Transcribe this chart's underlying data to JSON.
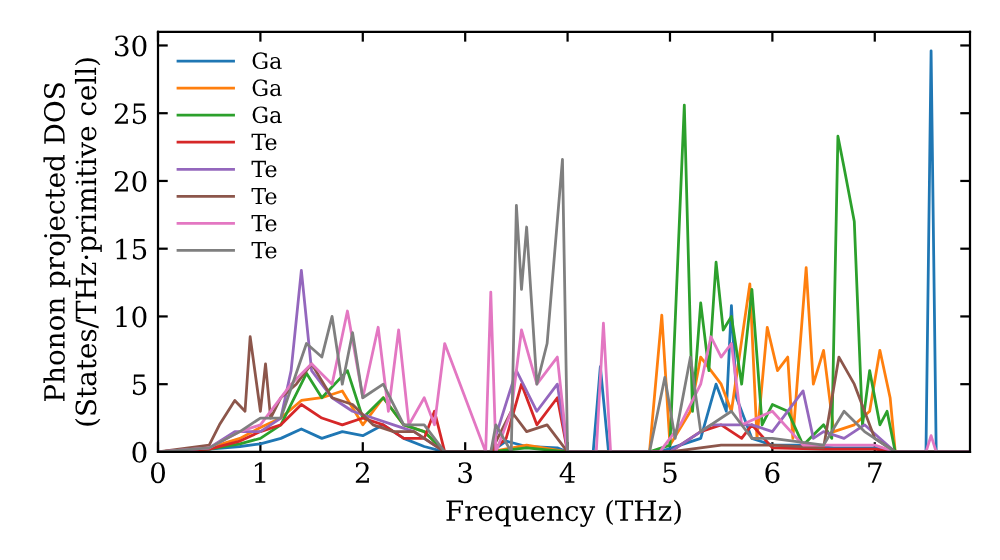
{
  "chart_data": {
    "type": "line",
    "xlabel": "Frequency (THz)",
    "ylabel": "Phonon projected DOS\n(States/THz·primitive cell)",
    "xlim": [
      0,
      7.93
    ],
    "ylim": [
      0,
      31
    ],
    "xticks": [
      0,
      1,
      2,
      3,
      4,
      5,
      6,
      7
    ],
    "yticks": [
      0,
      5,
      10,
      15,
      20,
      25,
      30
    ],
    "grid": false,
    "legend": "top left",
    "marker": "none",
    "line_style": "solid",
    "series": [
      {
        "name": "Ga",
        "color": "#1f77b4",
        "x": [
          0,
          0.5,
          0.8,
          1.0,
          1.2,
          1.4,
          1.6,
          1.8,
          2.0,
          2.2,
          2.4,
          2.6,
          2.8,
          3.25,
          3.4,
          3.6,
          3.9,
          4.0,
          4.25,
          4.32,
          4.4,
          4.9,
          5.1,
          5.3,
          5.45,
          5.55,
          5.6,
          5.65,
          5.8,
          6.0,
          6.3,
          6.6,
          7.0,
          7.2,
          7.5,
          7.55,
          7.6,
          7.93
        ],
        "values": [
          0,
          0.2,
          0.4,
          0.6,
          1.0,
          1.7,
          1.0,
          1.5,
          1.2,
          2.0,
          1.0,
          0.4,
          0,
          0,
          0.8,
          0.4,
          0.3,
          0,
          0,
          6.3,
          0,
          0,
          0.5,
          1.0,
          5.0,
          3.0,
          10.8,
          4.0,
          1.0,
          0.5,
          0.5,
          0.3,
          0.3,
          0,
          0,
          29.6,
          0,
          0
        ]
      },
      {
        "name": "Ga",
        "color": "#ff7f0e",
        "x": [
          0,
          0.5,
          0.8,
          1.0,
          1.2,
          1.4,
          1.6,
          1.8,
          2.0,
          2.2,
          2.4,
          2.6,
          2.8,
          3.25,
          3.6,
          4.0,
          4.8,
          4.92,
          5.0,
          5.2,
          5.3,
          5.5,
          5.6,
          5.78,
          5.85,
          5.95,
          6.05,
          6.15,
          6.2,
          6.33,
          6.4,
          6.5,
          6.6,
          6.8,
          6.95,
          7.05,
          7.15,
          7.2,
          7.93
        ],
        "values": [
          0,
          0.3,
          1.0,
          1.8,
          2.5,
          3.8,
          4.0,
          4.5,
          2.0,
          4.0,
          2.0,
          1.5,
          0,
          0,
          0.5,
          0,
          0,
          10.1,
          0.5,
          3.0,
          7.0,
          5.0,
          3.0,
          12.4,
          1.0,
          9.2,
          6.0,
          7.0,
          1.0,
          13.6,
          5.0,
          7.5,
          1.5,
          2.0,
          3.0,
          7.5,
          4.0,
          0,
          0
        ]
      },
      {
        "name": "Ga",
        "color": "#2ca02c",
        "x": [
          0,
          0.5,
          0.8,
          1.0,
          1.2,
          1.45,
          1.6,
          1.85,
          2.0,
          2.2,
          2.4,
          2.6,
          2.8,
          3.25,
          3.6,
          4.0,
          4.8,
          5.0,
          5.14,
          5.22,
          5.3,
          5.38,
          5.45,
          5.52,
          5.6,
          5.7,
          5.8,
          5.9,
          6.0,
          6.15,
          6.3,
          6.5,
          6.58,
          6.64,
          6.7,
          6.8,
          6.88,
          6.95,
          7.05,
          7.12,
          7.2,
          7.93
        ],
        "values": [
          0,
          0.2,
          0.6,
          1.0,
          2.0,
          5.8,
          4.0,
          6.0,
          2.5,
          4.0,
          2.0,
          1.5,
          0,
          0,
          0.3,
          0,
          0,
          0.5,
          25.6,
          3.0,
          11.0,
          6.0,
          14.0,
          9.0,
          10.0,
          5.0,
          12.0,
          2.0,
          3.5,
          3.0,
          0.5,
          2.0,
          1.0,
          23.3,
          21.0,
          17.0,
          2.0,
          6.0,
          2.0,
          3.0,
          0,
          0
        ]
      },
      {
        "name": "Te",
        "color": "#d62728",
        "x": [
          0,
          0.5,
          0.8,
          1.0,
          1.2,
          1.4,
          1.6,
          1.8,
          2.0,
          2.2,
          2.4,
          2.6,
          2.7,
          2.8,
          3.25,
          3.4,
          3.55,
          3.7,
          3.9,
          4.0,
          5.0,
          5.3,
          5.5,
          5.7,
          5.8,
          6.0,
          6.5,
          7.0,
          7.2,
          7.93
        ],
        "values": [
          0,
          0.2,
          0.8,
          1.5,
          2.0,
          3.5,
          2.5,
          2.0,
          2.5,
          2.0,
          1.0,
          1.0,
          3.0,
          0,
          0,
          1.0,
          5.0,
          2.0,
          4.0,
          0,
          0,
          1.5,
          2.0,
          1.0,
          2.0,
          0.3,
          0.2,
          0.2,
          0,
          0
        ]
      },
      {
        "name": "Te",
        "color": "#9467bd",
        "x": [
          0,
          0.5,
          0.75,
          1.0,
          1.2,
          1.3,
          1.4,
          1.5,
          1.7,
          1.9,
          2.1,
          2.3,
          2.5,
          2.8,
          3.25,
          3.5,
          3.7,
          3.9,
          4.0,
          5.0,
          5.4,
          5.8,
          6.0,
          6.3,
          6.4,
          6.5,
          6.7,
          6.9,
          7.2,
          7.93
        ],
        "values": [
          0,
          0.3,
          1.5,
          1.5,
          2.5,
          6.0,
          13.4,
          6.0,
          4.0,
          3.0,
          2.5,
          2.0,
          1.5,
          0,
          0,
          6.0,
          3.0,
          5.0,
          0,
          0,
          2.0,
          2.0,
          1.5,
          4.5,
          1.0,
          1.5,
          1.0,
          2.0,
          0,
          0
        ]
      },
      {
        "name": "Te",
        "color": "#8c564b",
        "x": [
          0,
          0.5,
          0.6,
          0.75,
          0.85,
          0.9,
          1.0,
          1.05,
          1.1,
          1.2,
          1.35,
          1.5,
          1.7,
          1.9,
          2.1,
          2.3,
          2.5,
          2.8,
          3.25,
          3.45,
          3.6,
          3.8,
          4.0,
          5.0,
          5.5,
          6.0,
          6.5,
          6.65,
          6.8,
          7.0,
          7.2,
          7.93
        ],
        "values": [
          0,
          0.5,
          2.0,
          3.8,
          3.0,
          8.5,
          3.0,
          6.5,
          2.5,
          4.0,
          5.0,
          6.5,
          4.0,
          3.5,
          2.0,
          1.5,
          1.5,
          0,
          0,
          3.0,
          1.5,
          2.0,
          0,
          0,
          0.5,
          0.5,
          0.3,
          7.0,
          5.0,
          1.0,
          0,
          0
        ]
      },
      {
        "name": "Te",
        "color": "#e377c2",
        "x": [
          0,
          0.5,
          0.8,
          1.0,
          1.3,
          1.5,
          1.7,
          1.85,
          2.0,
          2.15,
          2.25,
          2.35,
          2.45,
          2.6,
          2.7,
          2.8,
          3.2,
          3.25,
          3.3,
          3.45,
          3.55,
          3.7,
          3.9,
          4.0,
          4.28,
          4.35,
          4.42,
          4.9,
          5.1,
          5.3,
          5.4,
          5.5,
          5.6,
          5.7,
          6.0,
          6.3,
          6.6,
          7.0,
          7.2,
          7.5,
          7.55,
          7.6,
          7.93
        ],
        "values": [
          0,
          0.3,
          1.5,
          2.0,
          5.0,
          6.5,
          5.0,
          10.4,
          4.0,
          9.2,
          3.0,
          9.0,
          2.0,
          4.0,
          2.0,
          8.0,
          0,
          11.8,
          0,
          3.0,
          9.0,
          5.0,
          7.0,
          0,
          0,
          9.5,
          0,
          0,
          2.0,
          5.0,
          8.5,
          7.0,
          8.0,
          2.0,
          3.0,
          0.5,
          0.5,
          0.5,
          0,
          0,
          1.2,
          0,
          0
        ]
      },
      {
        "name": "Te",
        "color": "#7f7f7f",
        "x": [
          0,
          0.5,
          0.8,
          1.0,
          1.2,
          1.45,
          1.6,
          1.7,
          1.8,
          1.9,
          2.0,
          2.2,
          2.4,
          2.6,
          2.8,
          3.25,
          3.3,
          3.45,
          3.5,
          3.55,
          3.6,
          3.7,
          3.8,
          3.95,
          4.0,
          4.8,
          4.95,
          5.05,
          5.2,
          5.3,
          5.6,
          5.8,
          6.0,
          6.5,
          6.7,
          6.9,
          7.2,
          7.93
        ],
        "values": [
          0,
          0.3,
          1.5,
          2.5,
          2.5,
          8.0,
          7.0,
          10.0,
          5.0,
          8.8,
          4.0,
          5.0,
          2.0,
          2.0,
          0,
          0,
          2.0,
          0,
          18.2,
          12.0,
          16.6,
          5.0,
          8.0,
          21.6,
          0,
          0,
          5.5,
          1.0,
          7.0,
          1.5,
          3.0,
          1.0,
          1.0,
          0.5,
          3.0,
          1.5,
          0,
          0
        ]
      }
    ]
  }
}
